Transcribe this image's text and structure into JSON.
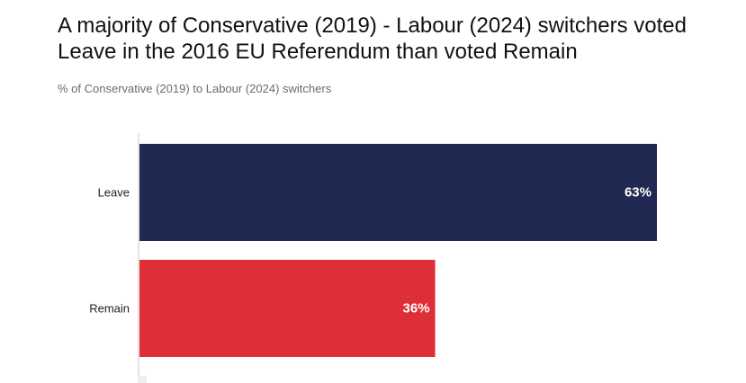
{
  "title_lines": [
    "A majority of Conservative (2019) - Labour (2024) switchers voted",
    "Leave in the 2016 EU Referendum than voted Remain"
  ],
  "subtitle": "% of Conservative (2019) to Labour (2024) switchers",
  "colors": {
    "leave": "#1f2952",
    "remain": "#de2e37",
    "axis": "#e4e4e4"
  },
  "chart_data": {
    "type": "bar",
    "orientation": "horizontal",
    "title": "A majority of Conservative (2019) - Labour (2024) switchers voted Leave in the 2016 EU Referendum than voted Remain",
    "subtitle": "% of Conservative (2019) to Labour (2024) switchers",
    "categories": [
      "Leave",
      "Remain"
    ],
    "values": [
      63,
      36
    ],
    "value_labels": [
      "63%",
      "36%"
    ],
    "xlabel": "",
    "ylabel": "",
    "xlim": [
      0,
      63
    ],
    "grid": false,
    "legend": "none"
  }
}
